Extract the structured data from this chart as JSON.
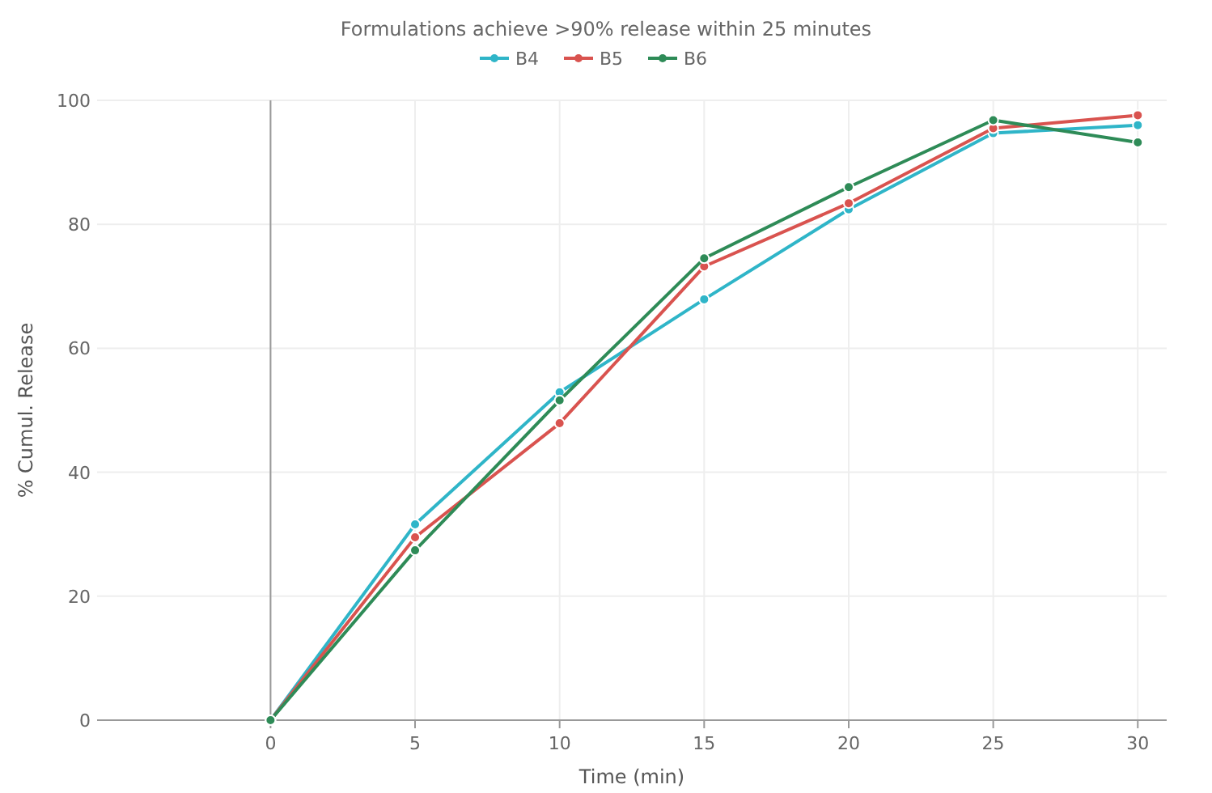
{
  "chart_data": {
    "type": "line",
    "subtitle": "Formulations achieve >90% release within 25 minutes",
    "xlabel": "Time (min)",
    "ylabel": "% Cumul. Release",
    "x": [
      0,
      5,
      10,
      15,
      20,
      25,
      30
    ],
    "series": [
      {
        "name": "B4",
        "color": "#2fb5c8",
        "values": [
          0,
          31.6,
          52.9,
          67.9,
          82.4,
          94.7,
          96
        ]
      },
      {
        "name": "B5",
        "color": "#d9534f",
        "values": [
          0,
          29.5,
          47.9,
          73.2,
          83.4,
          95.5,
          97.6
        ]
      },
      {
        "name": "B6",
        "color": "#2e8b57",
        "values": [
          0,
          27.4,
          51.6,
          74.5,
          86,
          96.8,
          93.2
        ]
      }
    ],
    "xlim": [
      -6,
      31
    ],
    "xticks": [
      0,
      5,
      10,
      15,
      20,
      25,
      30
    ],
    "ylim": [
      0,
      100
    ],
    "yticks": [
      0,
      20,
      40,
      60,
      80,
      100
    ],
    "grid": true,
    "legend": "top",
    "marker": "circle",
    "line_style": "solid"
  }
}
